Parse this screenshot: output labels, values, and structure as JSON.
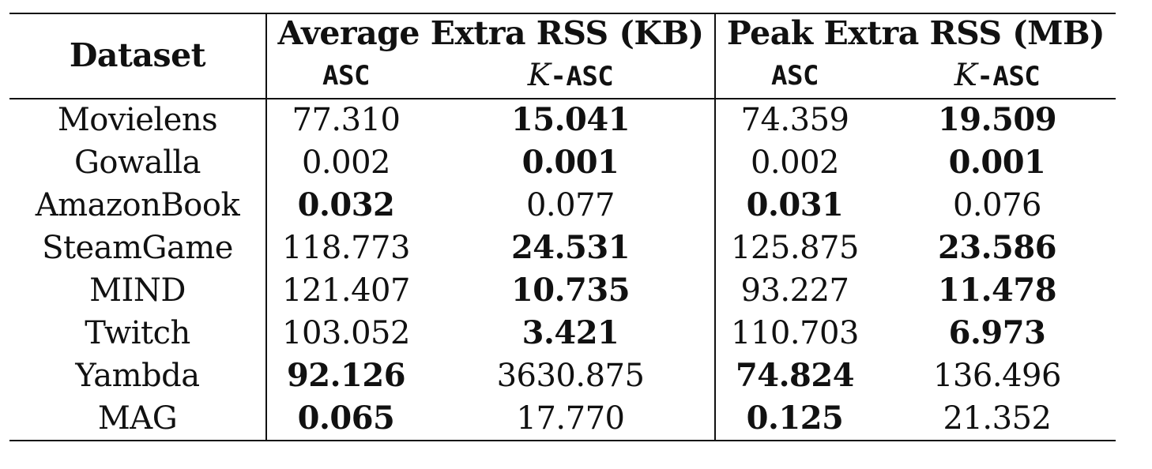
{
  "table": {
    "header": {
      "dataset": "Dataset",
      "group1": "Average Extra RSS (KB)",
      "group2": "Peak Extra RSS (MB)",
      "sub_asc": "ASC",
      "sub_k": "K",
      "sub_kasc": "-ASC"
    },
    "rows": [
      {
        "name": "Movielens",
        "avg_asc": "77.310",
        "avg_kasc": "15.041",
        "peak_asc": "74.359",
        "peak_kasc": "19.509",
        "avg_best": "kasc",
        "peak_best": "kasc"
      },
      {
        "name": "Gowalla",
        "avg_asc": "0.002",
        "avg_kasc": "0.001",
        "peak_asc": "0.002",
        "peak_kasc": "0.001",
        "avg_best": "kasc",
        "peak_best": "kasc"
      },
      {
        "name": "AmazonBook",
        "avg_asc": "0.032",
        "avg_kasc": "0.077",
        "peak_asc": "0.031",
        "peak_kasc": "0.076",
        "avg_best": "asc",
        "peak_best": "asc"
      },
      {
        "name": "SteamGame",
        "avg_asc": "118.773",
        "avg_kasc": "24.531",
        "peak_asc": "125.875",
        "peak_kasc": "23.586",
        "avg_best": "kasc",
        "peak_best": "kasc"
      },
      {
        "name": "MIND",
        "avg_asc": "121.407",
        "avg_kasc": "10.735",
        "peak_asc": "93.227",
        "peak_kasc": "11.478",
        "avg_best": "kasc",
        "peak_best": "kasc"
      },
      {
        "name": "Twitch",
        "avg_asc": "103.052",
        "avg_kasc": "3.421",
        "peak_asc": "110.703",
        "peak_kasc": "6.973",
        "avg_best": "kasc",
        "peak_best": "kasc"
      },
      {
        "name": "Yambda",
        "avg_asc": "92.126",
        "avg_kasc": "3630.875",
        "peak_asc": "74.824",
        "peak_kasc": "136.496",
        "avg_best": "asc",
        "peak_best": "asc"
      },
      {
        "name": "MAG",
        "avg_asc": "0.065",
        "avg_kasc": "17.770",
        "peak_asc": "0.125",
        "peak_kasc": "21.352",
        "avg_best": "asc",
        "peak_best": "asc"
      }
    ]
  }
}
